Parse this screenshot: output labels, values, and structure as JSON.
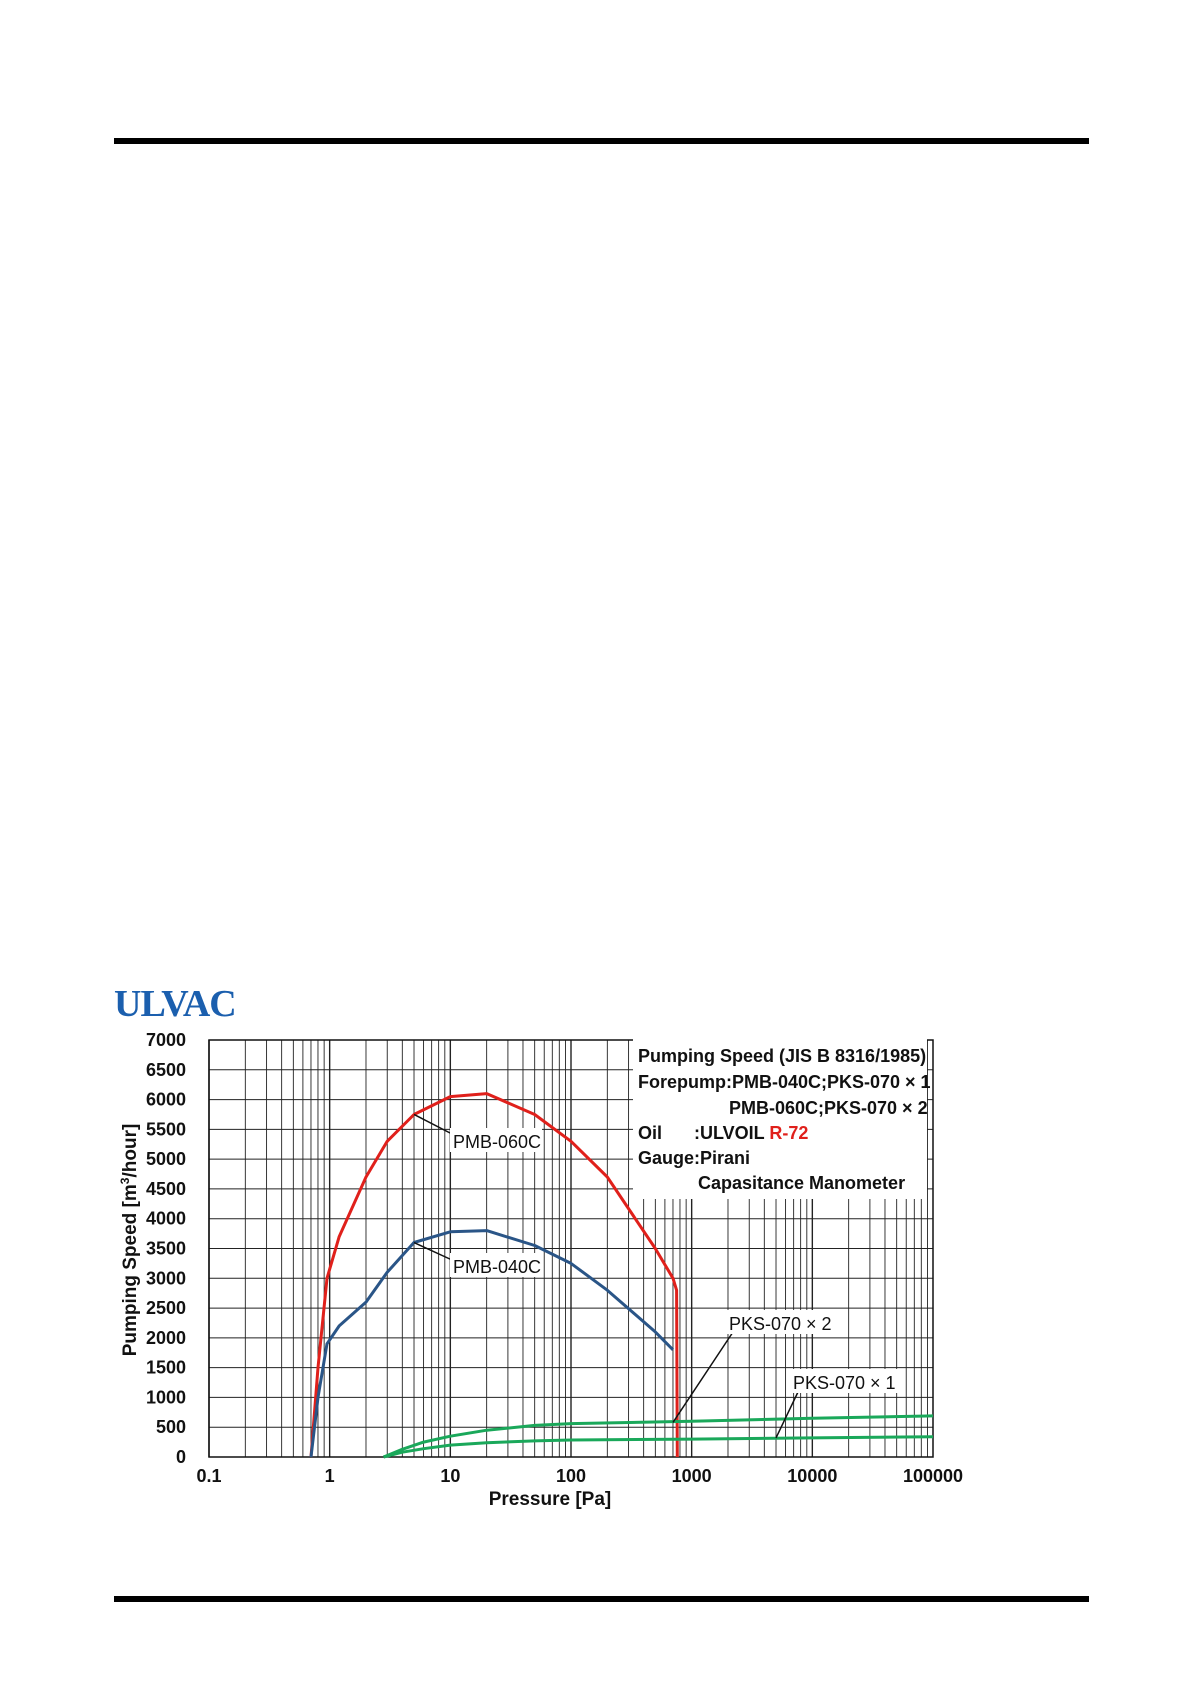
{
  "brand": {
    "logo_text": "ULVAC",
    "color": "#1b5fae"
  },
  "chart_data": {
    "type": "line",
    "title": "",
    "xlabel": "Pressure [Pa]",
    "ylabel_parts": [
      "Pumping Speed [m",
      "3",
      "/hour]"
    ],
    "x_scale": "log",
    "xlim": [
      0.1,
      100000
    ],
    "ylim": [
      0,
      7000
    ],
    "grid": true,
    "x_tick_labels": [
      "0.1",
      "1",
      "10",
      "100",
      "1000",
      "10000",
      "100000"
    ],
    "y_tick_labels": [
      "0",
      "500",
      "1000",
      "1500",
      "2000",
      "2500",
      "3000",
      "3500",
      "4000",
      "4500",
      "5000",
      "5500",
      "6000",
      "6500",
      "7000"
    ],
    "notes": {
      "line1": "Pumping Speed (JIS B 8316/1985)",
      "line2": "Forepump:PMB-040C;PKS-070 × 1",
      "line3": "PMB-060C;PKS-070 × 2",
      "line4_prefix": "Oil",
      "line4_value": ":ULVOIL ",
      "line4_highlight": "R-72",
      "line5": "Gauge:Pirani",
      "line6": "Capasitance Manometer",
      "highlight_color": "#e0201b"
    },
    "series": [
      {
        "name": "PMB-060C",
        "color": "#e0201b",
        "points": [
          [
            0.7,
            0
          ],
          [
            0.8,
            1500
          ],
          [
            0.95,
            3000
          ],
          [
            1.2,
            3700
          ],
          [
            2,
            4700
          ],
          [
            3,
            5300
          ],
          [
            5,
            5750
          ],
          [
            10,
            6050
          ],
          [
            20,
            6100
          ],
          [
            50,
            5750
          ],
          [
            100,
            5300
          ],
          [
            200,
            4700
          ],
          [
            500,
            3500
          ],
          [
            700,
            3000
          ],
          [
            750,
            2800
          ],
          [
            760,
            0
          ]
        ]
      },
      {
        "name": "PMB-040C",
        "color": "#2a5587",
        "points": [
          [
            0.7,
            0
          ],
          [
            0.8,
            1000
          ],
          [
            0.95,
            1900
          ],
          [
            1.2,
            2200
          ],
          [
            2,
            2600
          ],
          [
            3,
            3100
          ],
          [
            5,
            3600
          ],
          [
            10,
            3780
          ],
          [
            20,
            3800
          ],
          [
            50,
            3550
          ],
          [
            100,
            3250
          ],
          [
            200,
            2800
          ],
          [
            500,
            2100
          ],
          [
            700,
            1800
          ]
        ]
      },
      {
        "name": "PKS-070 × 2",
        "color": "#1aa85a",
        "points": [
          [
            2.8,
            0
          ],
          [
            4,
            130
          ],
          [
            6,
            250
          ],
          [
            10,
            350
          ],
          [
            20,
            450
          ],
          [
            50,
            530
          ],
          [
            100,
            560
          ],
          [
            1000,
            600
          ],
          [
            10000,
            650
          ],
          [
            100000,
            690
          ]
        ]
      },
      {
        "name": "PKS-070 × 1",
        "color": "#1aa85a",
        "points": [
          [
            2.8,
            0
          ],
          [
            4,
            80
          ],
          [
            6,
            140
          ],
          [
            10,
            200
          ],
          [
            20,
            240
          ],
          [
            50,
            270
          ],
          [
            100,
            285
          ],
          [
            1000,
            300
          ],
          [
            10000,
            320
          ],
          [
            100000,
            340
          ]
        ]
      }
    ],
    "annotations": [
      "PMB-060C",
      "PMB-040C",
      "PKS-070 × 2",
      "PKS-070 × 1"
    ]
  }
}
